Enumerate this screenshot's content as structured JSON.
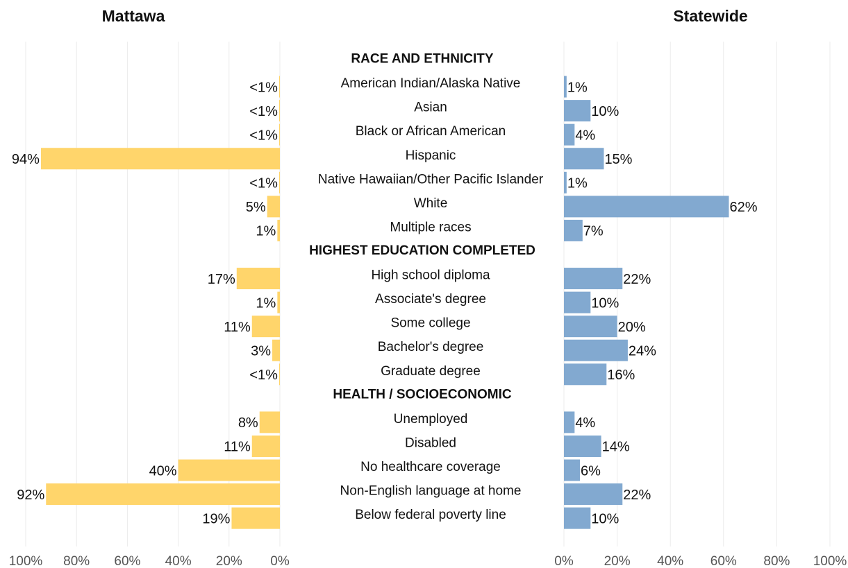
{
  "chart_data": {
    "type": "butterfly-bar",
    "sections": [
      {
        "title": "RACE AND ETHNICITY",
        "categories": [
          "American Indian/Alaska Native",
          "Asian",
          "Black or African American",
          "Hispanic",
          "Native Hawaiian/Other Pacific Islander",
          "White",
          "Multiple races"
        ]
      },
      {
        "title": "HIGHEST EDUCATION COMPLETED",
        "categories": [
          "High school diploma",
          "Associate's degree",
          "Some college",
          "Bachelor's degree",
          "Graduate degree"
        ]
      },
      {
        "title": "HEALTH / SOCIOECONOMIC",
        "categories": [
          "Unemployed",
          "Disabled",
          "No healthcare coverage",
          "Non-English language at home",
          "Below federal poverty line"
        ]
      }
    ],
    "series": [
      {
        "name": "Mattawa",
        "color": "#ffd56b",
        "values": [
          0.3,
          0.3,
          0.3,
          94,
          0.3,
          5,
          1,
          17,
          1,
          11,
          3,
          0.3,
          8,
          11,
          40,
          92,
          19
        ],
        "value_labels": [
          "<1%",
          "<1%",
          "<1%",
          "94%",
          "<1%",
          "5%",
          "1%",
          "17%",
          "1%",
          "11%",
          "3%",
          "<1%",
          "8%",
          "11%",
          "40%",
          "92%",
          "19%"
        ]
      },
      {
        "name": "Statewide",
        "color": "#82a9d0",
        "values": [
          1,
          10,
          4,
          15,
          1,
          62,
          7,
          22,
          10,
          20,
          24,
          16,
          4,
          14,
          6,
          22,
          10
        ],
        "value_labels": [
          "1%",
          "10%",
          "4%",
          "15%",
          "1%",
          "62%",
          "7%",
          "22%",
          "10%",
          "20%",
          "24%",
          "16%",
          "4%",
          "14%",
          "6%",
          "22%",
          "10%"
        ]
      }
    ],
    "xlim": [
      0,
      100
    ],
    "xticks": [
      {
        "value": 0,
        "label": "0%"
      },
      {
        "value": 20,
        "label": "20%"
      },
      {
        "value": 40,
        "label": "40%"
      },
      {
        "value": 60,
        "label": "60%"
      },
      {
        "value": 80,
        "label": "80%"
      },
      {
        "value": 100,
        "label": "100%"
      }
    ],
    "grid": true
  }
}
